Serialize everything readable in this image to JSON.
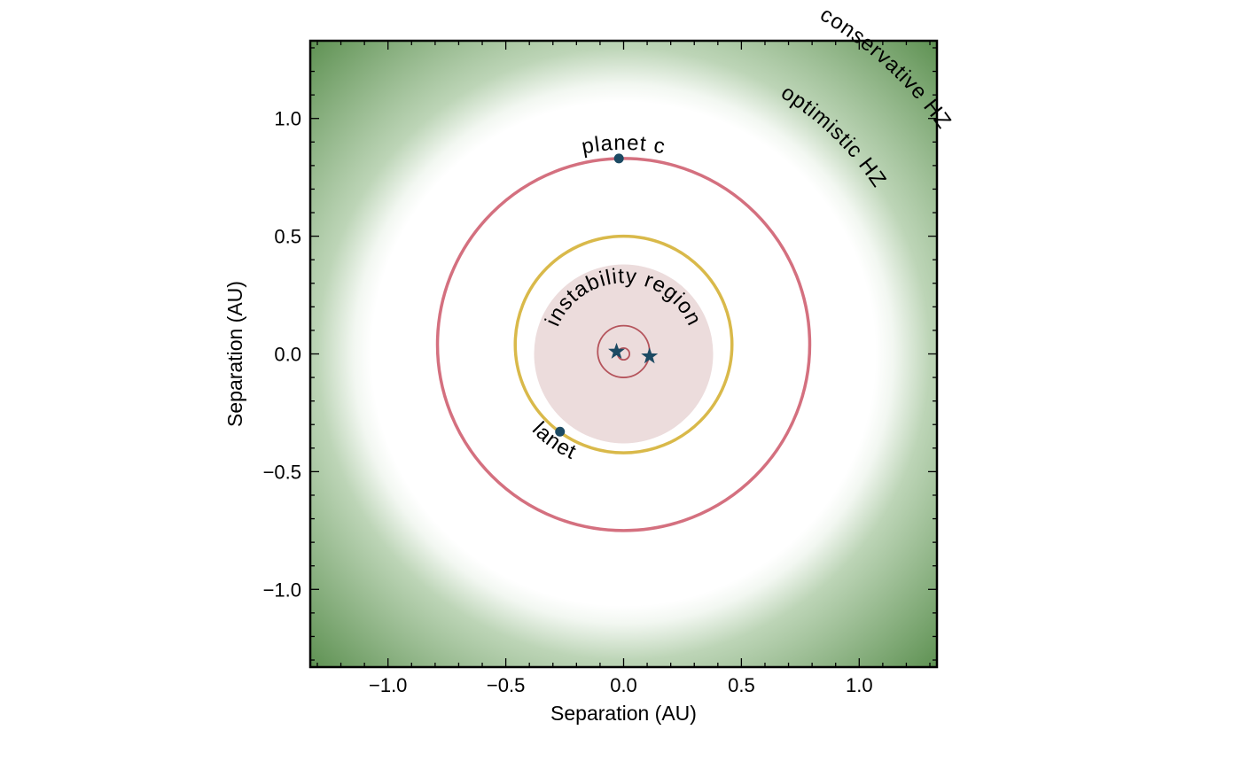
{
  "chart_data": {
    "type": "scatter",
    "title": "",
    "xlabel": "Separation (AU)",
    "ylabel": "Separation (AU)",
    "xlim": [
      -1.33,
      1.33
    ],
    "ylim": [
      -1.33,
      1.33
    ],
    "grid": false,
    "xticks": [
      -1.0,
      -0.5,
      0.0,
      0.5,
      1.0
    ],
    "yticks": [
      -1.0,
      -0.5,
      0.0,
      0.5,
      1.0
    ],
    "xtick_labels": [
      "−1.0",
      "−0.5",
      "0.0",
      "0.5",
      "1.0"
    ],
    "ytick_labels": [
      "1.0",
      "0.5",
      "0.0",
      "−0.5",
      "−1.0"
    ],
    "ytick_values": [
      1.0,
      0.5,
      0.0,
      -0.5,
      -1.0
    ],
    "habitable_zones": {
      "optimistic_inner_au": 1.07,
      "conservative_inner_au": 1.3,
      "optimistic_label": "optimistic  HZ",
      "conservative_label": "conservative  HZ",
      "color": "#5b8f4f"
    },
    "instability_region": {
      "center": [
        0.0,
        0.0
      ],
      "radius_au": 0.38,
      "label": "instability  region",
      "color": "#ecdcdc"
    },
    "orbits": [
      {
        "name": "planet c",
        "center": [
          0.0,
          0.04
        ],
        "radius_au": 0.79,
        "color": "#d4707f"
      },
      {
        "name": "planet b",
        "center": [
          0.0,
          0.04
        ],
        "radius_au": 0.46,
        "color": "#d9b94a"
      }
    ],
    "binary_orbits": [
      {
        "center": [
          0.0,
          0.01
        ],
        "radius_au": 0.11,
        "color": "#b5545c"
      },
      {
        "center": [
          0.0,
          0.0
        ],
        "radius_au": 0.025,
        "color": "#b5545c"
      }
    ],
    "planets": [
      {
        "label": "planet  c",
        "x": -0.02,
        "y": 0.83,
        "color": "#1c4a63"
      },
      {
        "label": "planet  b",
        "x": -0.27,
        "y": -0.33,
        "color": "#1c4a63"
      }
    ],
    "stars": [
      {
        "x": -0.03,
        "y": 0.01,
        "color": "#1c4a63"
      },
      {
        "x": 0.11,
        "y": -0.01,
        "color": "#1c4a63"
      }
    ]
  }
}
